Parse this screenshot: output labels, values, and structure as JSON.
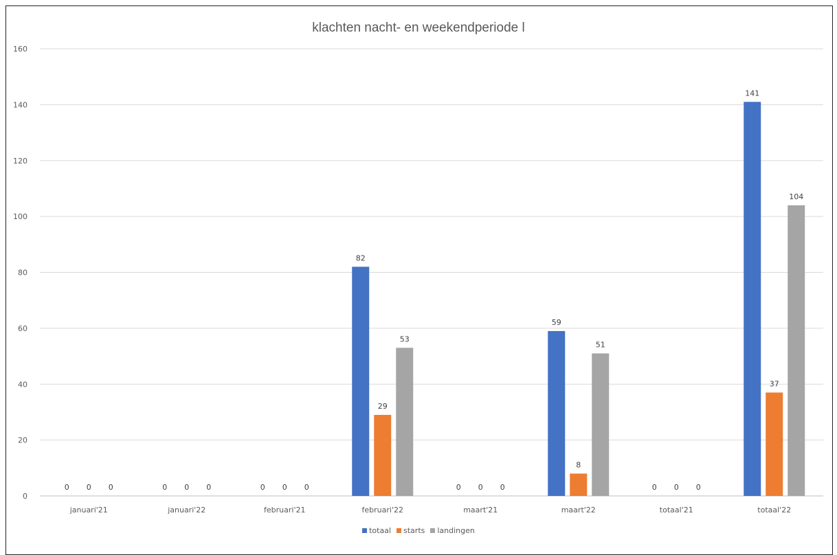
{
  "chart_data": {
    "type": "bar",
    "title": "klachten nacht- en weekendperiode l",
    "xlabel": "",
    "ylabel": "",
    "ylim": [
      0,
      160
    ],
    "yticks": [
      0,
      20,
      40,
      60,
      80,
      100,
      120,
      140,
      160
    ],
    "grid": true,
    "legend_position": "bottom",
    "categories": [
      "januari'21",
      "januari'22",
      "februari'21",
      "februari'22",
      "maart'21",
      "maart'22",
      "totaal'21",
      "totaal'22"
    ],
    "series": [
      {
        "name": "totaal",
        "color": "#4472C4",
        "values": [
          0,
          0,
          0,
          82,
          0,
          59,
          0,
          141
        ]
      },
      {
        "name": "starts",
        "color": "#ED7D31",
        "values": [
          0,
          0,
          0,
          29,
          0,
          8,
          0,
          37
        ]
      },
      {
        "name": "landingen",
        "color": "#A5A5A5",
        "values": [
          0,
          0,
          0,
          53,
          0,
          51,
          0,
          104
        ]
      }
    ]
  }
}
